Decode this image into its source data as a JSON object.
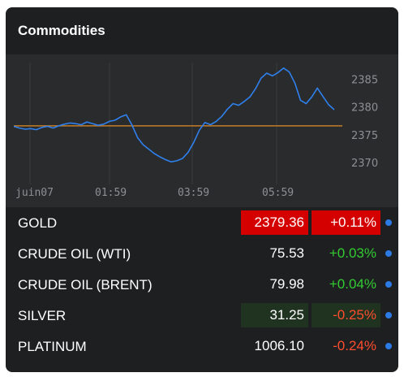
{
  "widget": {
    "title": "Commodities"
  },
  "chart_data": {
    "type": "line",
    "x_tick_labels": [
      "juin07",
      "01:59",
      "03:59",
      "05:59"
    ],
    "y_tick_labels": [
      "2385",
      "2380",
      "2375",
      "2370"
    ],
    "y_ticks": [
      2385,
      2380,
      2375,
      2370
    ],
    "ylim": [
      2367.5,
      2388
    ],
    "reference_line": 2376.6,
    "colors": {
      "line": "#2f80ed",
      "reference": "#c27c28",
      "grid": "#3a3b3d",
      "text": "#8d8f93"
    },
    "series": [
      {
        "values": [
          2376.5,
          2376.2,
          2376.0,
          2376.1,
          2375.9,
          2376.3,
          2376.5,
          2376.2,
          2376.6,
          2376.9,
          2377.1,
          2377.0,
          2376.8,
          2377.3,
          2377.0,
          2376.7,
          2376.9,
          2377.4,
          2377.6,
          2378.2,
          2378.6,
          2376.8,
          2374.5,
          2373.2,
          2372.4,
          2371.6,
          2371.0,
          2370.5,
          2370.1,
          2370.3,
          2370.7,
          2371.8,
          2373.6,
          2375.8,
          2377.2,
          2376.8,
          2377.4,
          2378.3,
          2379.6,
          2380.6,
          2380.3,
          2381.0,
          2381.8,
          2383.3,
          2385.2,
          2386.1,
          2385.6,
          2386.2,
          2387.0,
          2386.3,
          2384.3,
          2381.2,
          2380.6,
          2381.8,
          2383.4,
          2381.9,
          2380.4,
          2379.5
        ]
      }
    ]
  },
  "rows": [
    {
      "name": "GOLD",
      "price": "2379.36",
      "change": "+0.11%",
      "direction": "pos",
      "highlight": "red"
    },
    {
      "name": "CRUDE OIL (WTI)",
      "price": "75.53",
      "change": "+0.03%",
      "direction": "pos",
      "highlight": ""
    },
    {
      "name": "CRUDE OIL (BRENT)",
      "price": "79.98",
      "change": "+0.04%",
      "direction": "pos",
      "highlight": ""
    },
    {
      "name": "SILVER",
      "price": "31.25",
      "change": "-0.25%",
      "direction": "neg",
      "highlight": "green"
    },
    {
      "name": "PLATINUM",
      "price": "1006.10",
      "change": "-0.24%",
      "direction": "neg",
      "highlight": ""
    }
  ]
}
